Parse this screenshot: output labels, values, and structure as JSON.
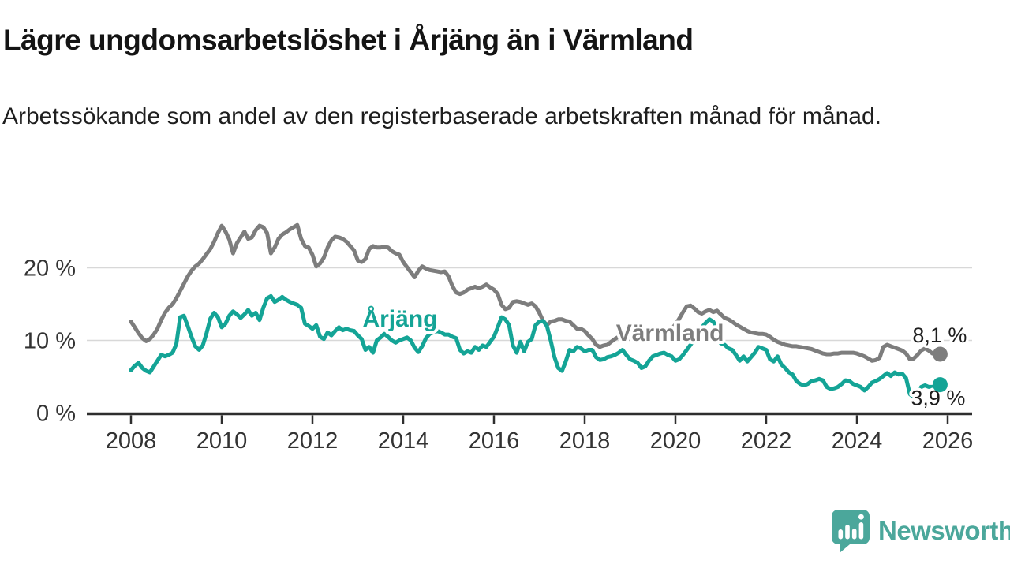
{
  "header": {
    "title": "Lägre ungdomsarbetslöshet i Årjäng än i Värmland",
    "subtitle": "Arbetssökande som andel av den registerbaserade arbetskraften månad för månad."
  },
  "chart_data": {
    "type": "line",
    "title": "Lägre ungdomsarbetslöshet i Årjäng än i Värmland",
    "xlabel": "",
    "ylabel": "Arbetssökande som andel av den registerbaserade arbetskraften",
    "unit": "%",
    "x_start": 2008,
    "points_per_year": 12,
    "x_range": [
      2007.0,
      2026.7
    ],
    "y_range": [
      0,
      27.5
    ],
    "grid": "horizontal",
    "x_tick_labels": [
      "2008",
      "2010",
      "2012",
      "2014",
      "2016",
      "2018",
      "2020",
      "2022",
      "2024",
      "2026"
    ],
    "x_tick_values": [
      2008,
      2010,
      2012,
      2014,
      2016,
      2018,
      2020,
      2022,
      2024,
      2026
    ],
    "y_tick_labels": [
      "0 %",
      "10 %",
      "20 %"
    ],
    "y_tick_values": [
      0,
      10,
      20
    ],
    "series": [
      {
        "name": "Värmland",
        "color": "#7d7d7d",
        "end_label": "8,1 %",
        "last_value": 8.1,
        "inline_label": {
          "x": 2019.88,
          "y": 9.95
        },
        "values": [
          12.6,
          11.8,
          11.0,
          10.3,
          9.9,
          10.2,
          10.8,
          11.6,
          12.8,
          13.8,
          14.5,
          15.0,
          15.8,
          16.8,
          17.8,
          18.8,
          19.6,
          20.2,
          20.6,
          21.2,
          21.9,
          22.6,
          23.6,
          24.8,
          25.8,
          25.0,
          23.9,
          22.0,
          23.4,
          24.2,
          25.0,
          24.0,
          24.2,
          25.2,
          25.8,
          25.6,
          24.8,
          22.0,
          22.8,
          24.0,
          24.6,
          24.9,
          25.3,
          25.6,
          25.9,
          24.0,
          23.0,
          22.8,
          21.8,
          20.2,
          20.6,
          21.4,
          22.8,
          23.8,
          24.3,
          24.2,
          24.0,
          23.6,
          23.0,
          22.4,
          21.0,
          20.8,
          21.2,
          22.6,
          23.0,
          22.8,
          22.8,
          22.9,
          22.8,
          22.3,
          22.0,
          21.8,
          20.8,
          20.1,
          19.4,
          18.7,
          19.6,
          20.2,
          19.9,
          19.7,
          19.6,
          19.5,
          19.4,
          19.5,
          18.8,
          17.5,
          16.6,
          16.4,
          16.6,
          17.0,
          17.2,
          17.4,
          17.2,
          17.4,
          17.7,
          17.3,
          17.0,
          16.4,
          14.9,
          14.3,
          14.5,
          15.3,
          15.4,
          15.3,
          15.1,
          14.9,
          15.1,
          14.7,
          13.8,
          12.7,
          12.1,
          12.6,
          12.7,
          12.9,
          12.9,
          12.7,
          12.6,
          12.1,
          11.6,
          11.6,
          11.3,
          10.7,
          10.2,
          9.4,
          9.1,
          9.3,
          9.4,
          9.8,
          10.2,
          10.5,
          10.4,
          10.3,
          10.2,
          10.4,
          10.6,
          10.4,
          10.2,
          10.4,
          10.7,
          10.5,
          10.4,
          10.6,
          11.0,
          11.6,
          12.2,
          13.0,
          13.9,
          14.7,
          14.8,
          14.4,
          13.9,
          13.7,
          14.0,
          14.2,
          13.9,
          14.1,
          13.6,
          13.1,
          12.9,
          12.6,
          12.2,
          11.9,
          11.6,
          11.3,
          11.1,
          11.0,
          10.9,
          10.9,
          10.8,
          10.5,
          10.1,
          9.8,
          9.6,
          9.4,
          9.3,
          9.2,
          9.2,
          9.1,
          9.0,
          8.9,
          8.8,
          8.6,
          8.4,
          8.2,
          8.1,
          8.1,
          8.2,
          8.2,
          8.3,
          8.3,
          8.3,
          8.3,
          8.2,
          8.0,
          7.8,
          7.5,
          7.2,
          7.3,
          7.6,
          9.1,
          9.4,
          9.2,
          9.0,
          8.8,
          8.6,
          8.2,
          7.4,
          7.5,
          8.0,
          8.6,
          8.9,
          8.6,
          8.2,
          8.2,
          8.1
        ]
      },
      {
        "name": "Årjäng",
        "color": "#14a496",
        "end_label": "3,9 %",
        "last_value": 3.9,
        "inline_label": {
          "x": 2013.93,
          "y": 11.9
        },
        "values": [
          5.9,
          6.5,
          6.9,
          6.2,
          5.8,
          5.6,
          6.4,
          7.2,
          8.0,
          7.8,
          8.0,
          8.3,
          9.5,
          13.2,
          13.4,
          12.0,
          10.5,
          9.2,
          8.7,
          9.3,
          11.0,
          13.0,
          13.8,
          13.2,
          11.8,
          12.3,
          13.4,
          14.0,
          13.6,
          13.1,
          13.6,
          14.2,
          13.4,
          13.8,
          12.8,
          14.5,
          15.8,
          16.1,
          15.3,
          15.6,
          16.0,
          15.6,
          15.3,
          15.1,
          14.9,
          14.5,
          12.3,
          12.0,
          11.6,
          12.1,
          10.5,
          10.2,
          11.1,
          10.7,
          11.3,
          11.8,
          11.4,
          11.6,
          11.4,
          11.3,
          10.7,
          10.2,
          8.7,
          9.1,
          8.3,
          10.0,
          10.4,
          10.9,
          10.5,
          10.0,
          9.7,
          10.0,
          10.2,
          10.4,
          10.0,
          9.0,
          8.4,
          9.2,
          10.3,
          10.9,
          11.1,
          11.3,
          11.1,
          10.8,
          10.8,
          10.5,
          10.3,
          8.7,
          8.2,
          8.5,
          8.3,
          9.1,
          8.7,
          9.3,
          9.1,
          9.8,
          10.5,
          11.8,
          13.2,
          12.9,
          12.1,
          9.3,
          8.3,
          9.8,
          8.5,
          9.8,
          10.2,
          12.1,
          12.6,
          12.7,
          12.0,
          10.0,
          7.7,
          6.2,
          5.8,
          7.1,
          8.7,
          8.5,
          9.1,
          8.9,
          8.5,
          8.7,
          8.7,
          7.7,
          7.3,
          7.4,
          7.7,
          7.8,
          8.0,
          8.3,
          8.7,
          8.0,
          7.4,
          7.2,
          6.9,
          6.2,
          6.4,
          7.2,
          7.8,
          8.0,
          8.2,
          8.3,
          8.0,
          7.8,
          7.2,
          7.4,
          8.0,
          8.7,
          9.4,
          10.2,
          11.0,
          11.8,
          12.4,
          12.9,
          12.6,
          11.6,
          9.6,
          9.4,
          8.9,
          8.7,
          8.0,
          7.2,
          7.8,
          7.1,
          7.7,
          8.3,
          9.1,
          8.9,
          8.7,
          7.4,
          7.1,
          7.8,
          6.7,
          6.2,
          5.6,
          5.3,
          4.4,
          4.0,
          3.8,
          4.0,
          4.4,
          4.5,
          4.7,
          4.5,
          3.6,
          3.3,
          3.4,
          3.6,
          4.0,
          4.5,
          4.4,
          4.0,
          3.8,
          3.6,
          3.1,
          3.6,
          4.2,
          4.4,
          4.7,
          5.1,
          5.5,
          5.1,
          5.6,
          5.3,
          5.4,
          4.8,
          2.6,
          2.2,
          2.4,
          3.6,
          3.8,
          3.6,
          3.6,
          3.8,
          3.9
        ]
      }
    ]
  },
  "footer": {
    "brand": "Newsworthy"
  },
  "colors": {
    "line_gray": "#7d7d7d",
    "accent_teal": "#14a496",
    "logo_teal": "#4ba79b",
    "grid": "#d8d8d8",
    "axis": "#2e2e2e",
    "text_dark": "#1d1d1d",
    "text_axis": "#333333"
  }
}
